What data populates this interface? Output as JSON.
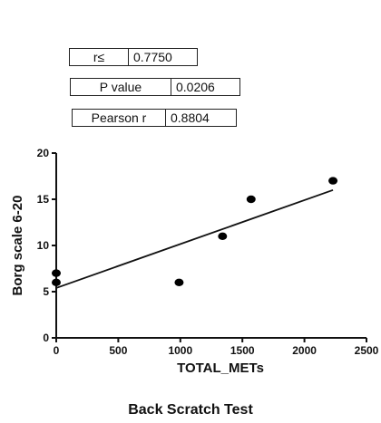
{
  "stats": {
    "spearman": {
      "label": "r≤",
      "value": "0.7750"
    },
    "p_value": {
      "label": "P value",
      "value": "0.0206"
    },
    "pearson": {
      "label": "Pearson r",
      "value": "0.8804"
    }
  },
  "caption": "Back Scratch Test",
  "chart_data": {
    "type": "scatter",
    "title": "",
    "xlabel": "TOTAL_METs",
    "ylabel": "Borg scale 6-20",
    "xlim": [
      0,
      2500
    ],
    "ylim": [
      0,
      20
    ],
    "xticks": [
      0,
      500,
      1000,
      1500,
      2000,
      2500
    ],
    "yticks": [
      0,
      5,
      10,
      15,
      20
    ],
    "grid": false,
    "points": [
      {
        "x": 0,
        "y": 7
      },
      {
        "x": 0,
        "y": 6
      },
      {
        "x": 990,
        "y": 6
      },
      {
        "x": 1340,
        "y": 11
      },
      {
        "x": 1570,
        "y": 15
      },
      {
        "x": 2230,
        "y": 17
      }
    ],
    "regression_line": {
      "x": [
        0,
        2230
      ],
      "y": [
        5.4,
        16.0
      ]
    }
  }
}
